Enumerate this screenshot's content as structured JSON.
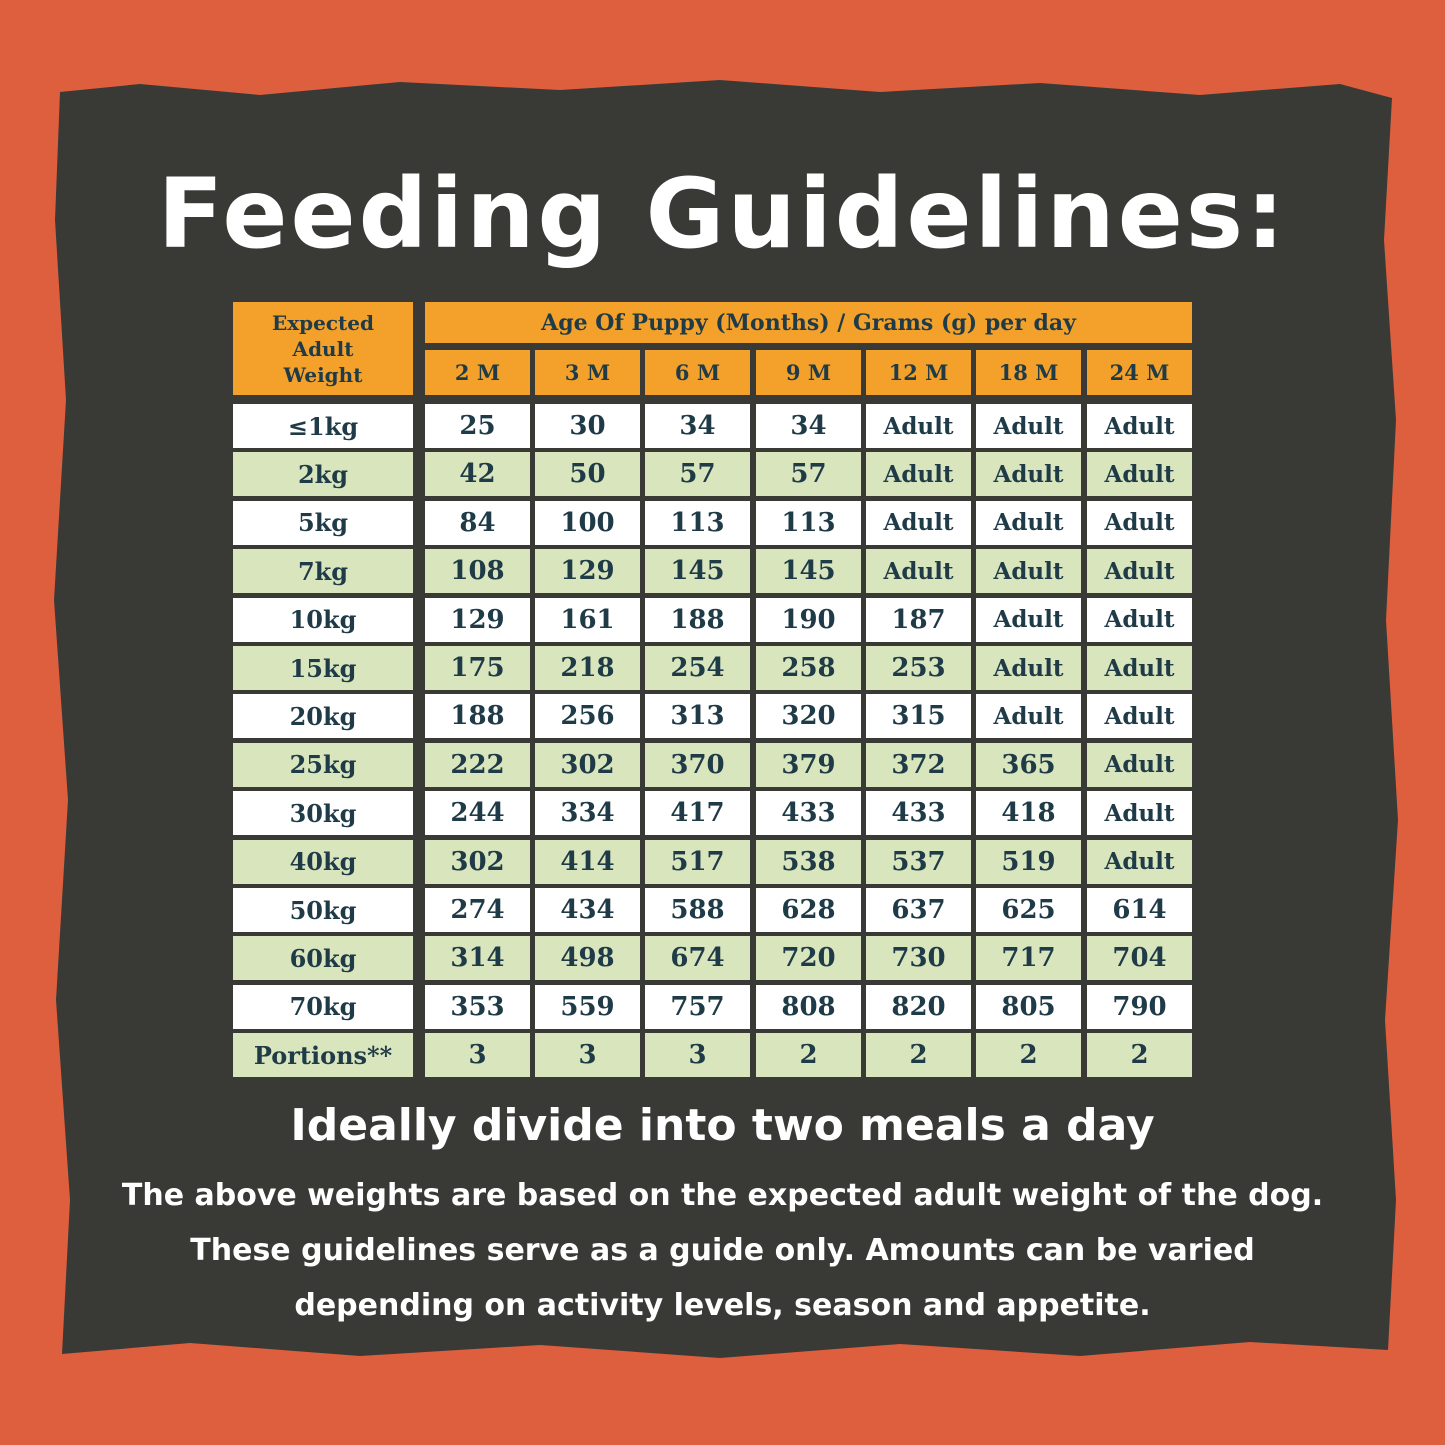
{
  "header": {
    "title": "Feeding Guidelines:"
  },
  "table": {
    "corner": "Expected Adult Weight",
    "group": "Age Of Puppy (Months) / Grams (g) per day",
    "columns": [
      "2 M",
      "3 M",
      "6 M",
      "9 M",
      "12 M",
      "18 M",
      "24 M"
    ],
    "rows": [
      {
        "label": "≤1kg",
        "cells": [
          25,
          30,
          34,
          34,
          "Adult",
          "Adult",
          "Adult"
        ]
      },
      {
        "label": "2kg",
        "cells": [
          42,
          50,
          57,
          57,
          "Adult",
          "Adult",
          "Adult"
        ]
      },
      {
        "label": "5kg",
        "cells": [
          84,
          100,
          113,
          113,
          "Adult",
          "Adult",
          "Adult"
        ]
      },
      {
        "label": "7kg",
        "cells": [
          108,
          129,
          145,
          145,
          "Adult",
          "Adult",
          "Adult"
        ]
      },
      {
        "label": "10kg",
        "cells": [
          129,
          161,
          188,
          190,
          187,
          "Adult",
          "Adult"
        ]
      },
      {
        "label": "15kg",
        "cells": [
          175,
          218,
          254,
          258,
          253,
          "Adult",
          "Adult"
        ]
      },
      {
        "label": "20kg",
        "cells": [
          188,
          256,
          313,
          320,
          315,
          "Adult",
          "Adult"
        ]
      },
      {
        "label": "25kg",
        "cells": [
          222,
          302,
          370,
          379,
          372,
          365,
          "Adult"
        ]
      },
      {
        "label": "30kg",
        "cells": [
          244,
          334,
          417,
          433,
          433,
          418,
          "Adult"
        ]
      },
      {
        "label": "40kg",
        "cells": [
          302,
          414,
          517,
          538,
          537,
          519,
          "Adult"
        ]
      },
      {
        "label": "50kg",
        "cells": [
          274,
          434,
          588,
          628,
          637,
          625,
          614
        ]
      },
      {
        "label": "60kg",
        "cells": [
          314,
          498,
          674,
          720,
          730,
          717,
          704
        ]
      },
      {
        "label": "70kg",
        "cells": [
          353,
          559,
          757,
          808,
          820,
          805,
          790
        ]
      },
      {
        "label": "Portions**",
        "cells": [
          3,
          3,
          3,
          2,
          2,
          2,
          2
        ]
      }
    ]
  },
  "footer": {
    "subtitle": "Ideally divide into two meals a day",
    "notes": [
      "The above weights are based on the expected adult weight of the dog.",
      "These guidelines serve as a guide only. Amounts can be varied",
      "depending on activity levels, season and appetite."
    ]
  }
}
